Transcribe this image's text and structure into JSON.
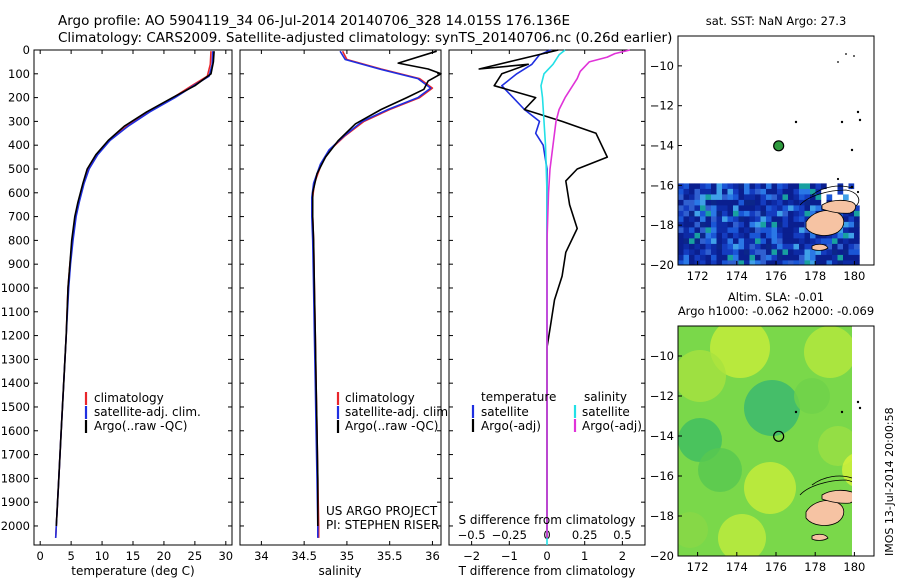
{
  "header": {
    "line1": "Argo profile: AO 5904119_34 06-Jul-2014 20140706_328 14.015S 176.136E",
    "line2": "Climatology: CARS2009. Satellite-adjusted climatology: synTS_20140706.nc (0.26d earlier)"
  },
  "colors": {
    "red": "#e8252b",
    "blue": "#1f2fe0",
    "black": "#000000",
    "cyan": "#22e0e6",
    "magenta": "#e033d8"
  },
  "chart_data": [
    {
      "type": "line",
      "name": "temperature",
      "xlabel": "temperature (deg C)",
      "xlim": [
        -1,
        31
      ],
      "ylim": [
        0,
        2080
      ],
      "y_inverted": true,
      "xticks": [
        0,
        5,
        10,
        15,
        20,
        25,
        30
      ],
      "yticks": [
        0,
        100,
        200,
        300,
        400,
        500,
        600,
        700,
        800,
        900,
        1000,
        1100,
        1200,
        1300,
        1400,
        1500,
        1600,
        1700,
        1800,
        1900,
        2000
      ],
      "legend": {
        "placement": "lower-left",
        "entries": [
          "climatology",
          "satellite-adj. clim.",
          "Argo(..raw -QC)"
        ]
      },
      "series": [
        {
          "name": "climatology",
          "color": "red",
          "points": [
            [
              27.6,
              5
            ],
            [
              27.5,
              60
            ],
            [
              27.0,
              110
            ],
            [
              24.5,
              150
            ],
            [
              21.5,
              200
            ],
            [
              17.5,
              260
            ],
            [
              14.0,
              320
            ],
            [
              11.2,
              380
            ],
            [
              9.2,
              440
            ],
            [
              7.8,
              500
            ],
            [
              7.0,
              560
            ],
            [
              6.2,
              640
            ],
            [
              5.7,
              700
            ],
            [
              5.2,
              800
            ],
            [
              4.8,
              900
            ],
            [
              4.5,
              1000
            ],
            [
              4.2,
              1200
            ],
            [
              3.8,
              1400
            ],
            [
              3.4,
              1600
            ],
            [
              3.0,
              1800
            ],
            [
              2.6,
              2000
            ],
            [
              2.5,
              2050
            ]
          ]
        },
        {
          "name": "satellite-adj. clim.",
          "color": "blue",
          "points": [
            [
              27.9,
              5
            ],
            [
              27.8,
              60
            ],
            [
              27.3,
              110
            ],
            [
              24.8,
              150
            ],
            [
              21.8,
              200
            ],
            [
              17.7,
              260
            ],
            [
              14.2,
              320
            ],
            [
              11.3,
              380
            ],
            [
              9.3,
              440
            ],
            [
              7.9,
              500
            ],
            [
              7.1,
              560
            ],
            [
              6.3,
              640
            ],
            [
              5.8,
              700
            ],
            [
              5.3,
              800
            ],
            [
              4.9,
              900
            ],
            [
              4.6,
              1000
            ],
            [
              4.2,
              1200
            ],
            [
              3.8,
              1400
            ],
            [
              3.4,
              1600
            ],
            [
              3.0,
              1800
            ],
            [
              2.6,
              2000
            ],
            [
              2.5,
              2050
            ]
          ]
        },
        {
          "name": "Argo",
          "color": "black",
          "points": [
            [
              28.1,
              5
            ],
            [
              28.0,
              50
            ],
            [
              27.6,
              100
            ],
            [
              25.0,
              150
            ],
            [
              21.4,
              200
            ],
            [
              17.2,
              260
            ],
            [
              13.6,
              320
            ],
            [
              11.0,
              380
            ],
            [
              9.0,
              440
            ],
            [
              7.6,
              500
            ],
            [
              6.9,
              560
            ],
            [
              6.1,
              640
            ],
            [
              5.6,
              700
            ],
            [
              5.1,
              800
            ],
            [
              4.8,
              900
            ],
            [
              4.5,
              1000
            ],
            [
              4.2,
              1200
            ],
            [
              3.8,
              1400
            ],
            [
              3.4,
              1600
            ],
            [
              3.0,
              1800
            ],
            [
              2.6,
              2000
            ]
          ]
        }
      ]
    },
    {
      "type": "line",
      "name": "salinity",
      "xlabel": "salinity",
      "xlim": [
        33.75,
        36.1
      ],
      "ylim": [
        0,
        2080
      ],
      "y_inverted": true,
      "xticks": [
        34,
        34.5,
        35,
        35.5,
        36
      ],
      "xticklabels": [
        "34",
        "34.5",
        "35",
        "35.5",
        "36"
      ],
      "legend": {
        "placement": "lower-right",
        "entries": [
          "climatology",
          "satellite-adj. clim.",
          "Argo(..raw -QC)"
        ]
      },
      "annotation": [
        "US ARGO PROJECT",
        "PI: STEPHEN RISER"
      ],
      "series": [
        {
          "name": "climatology",
          "color": "red",
          "points": [
            [
              34.95,
              5
            ],
            [
              35.0,
              40
            ],
            [
              35.4,
              80
            ],
            [
              35.85,
              120
            ],
            [
              36.0,
              160
            ],
            [
              35.85,
              200
            ],
            [
              35.5,
              250
            ],
            [
              35.2,
              300
            ],
            [
              34.98,
              360
            ],
            [
              34.8,
              420
            ],
            [
              34.7,
              480
            ],
            [
              34.62,
              560
            ],
            [
              34.6,
              620
            ],
            [
              34.6,
              700
            ],
            [
              34.61,
              800
            ],
            [
              34.62,
              1000
            ],
            [
              34.63,
              1200
            ],
            [
              34.64,
              1400
            ],
            [
              34.65,
              1600
            ],
            [
              34.66,
              1800
            ],
            [
              34.67,
              2000
            ],
            [
              34.67,
              2050
            ]
          ]
        },
        {
          "name": "satellite-adj. clim.",
          "color": "blue",
          "points": [
            [
              34.92,
              5
            ],
            [
              34.98,
              40
            ],
            [
              35.38,
              80
            ],
            [
              35.83,
              120
            ],
            [
              35.98,
              160
            ],
            [
              35.83,
              200
            ],
            [
              35.48,
              250
            ],
            [
              35.18,
              300
            ],
            [
              34.97,
              360
            ],
            [
              34.79,
              420
            ],
            [
              34.69,
              480
            ],
            [
              34.61,
              560
            ],
            [
              34.59,
              620
            ],
            [
              34.59,
              700
            ],
            [
              34.6,
              800
            ],
            [
              34.61,
              1000
            ],
            [
              34.62,
              1200
            ],
            [
              34.63,
              1400
            ],
            [
              34.64,
              1600
            ],
            [
              34.65,
              1800
            ],
            [
              34.66,
              2000
            ],
            [
              34.66,
              2050
            ]
          ]
        },
        {
          "name": "Argo",
          "color": "black",
          "points": [
            [
              36.05,
              5
            ],
            [
              35.6,
              55
            ],
            [
              35.95,
              80
            ],
            [
              36.1,
              100
            ],
            [
              35.95,
              130
            ],
            [
              35.9,
              165
            ],
            [
              35.7,
              200
            ],
            [
              35.4,
              250
            ],
            [
              35.1,
              310
            ],
            [
              34.9,
              380
            ],
            [
              34.75,
              450
            ],
            [
              34.65,
              520
            ],
            [
              34.6,
              600
            ],
            [
              34.6,
              700
            ],
            [
              34.61,
              800
            ],
            [
              34.62,
              1000
            ],
            [
              34.63,
              1200
            ],
            [
              34.64,
              1400
            ],
            [
              34.65,
              1600
            ],
            [
              34.66,
              1800
            ],
            [
              34.66,
              2000
            ]
          ]
        }
      ]
    },
    {
      "type": "line",
      "name": "differences",
      "xlabel": "T difference from climatology",
      "x2label": "S difference from climatology",
      "xlim": [
        -2.6,
        2.6
      ],
      "ylim": [
        0,
        2080
      ],
      "y_inverted": true,
      "xticks": [
        -2,
        -1,
        0,
        1,
        2
      ],
      "x2ticks": [
        -0.5,
        -0.25,
        0,
        0.25,
        0.5
      ],
      "x2_scale_factor": 4,
      "legend": {
        "placement": "lower-center",
        "headers": [
          "temperature",
          "salinity"
        ],
        "entries": [
          "satellite",
          "Argo(-adj)",
          "satellite",
          "Argo(-adj)"
        ]
      },
      "series": [
        {
          "name": "temperature satellite",
          "color": "blue",
          "points": [
            [
              0.1,
              0
            ],
            [
              -0.2,
              20
            ],
            [
              -0.4,
              60
            ],
            [
              -0.8,
              100
            ],
            [
              -1.2,
              150
            ],
            [
              -0.9,
              200
            ],
            [
              -0.6,
              250
            ],
            [
              -0.2,
              300
            ],
            [
              -0.3,
              350
            ],
            [
              -0.1,
              400
            ],
            [
              0.0,
              500
            ],
            [
              0.0,
              600
            ],
            [
              0.0,
              800
            ],
            [
              0.0,
              1000
            ],
            [
              0.0,
              1200
            ],
            [
              0.0,
              1600
            ],
            [
              0.0,
              2050
            ]
          ]
        },
        {
          "name": "temperature Argo(-adj)",
          "color": "black",
          "points": [
            [
              0.3,
              0
            ],
            [
              -1.8,
              80
            ],
            [
              -0.5,
              60
            ],
            [
              -1.2,
              100
            ],
            [
              -1.4,
              150
            ],
            [
              -0.3,
              200
            ],
            [
              -0.6,
              250
            ],
            [
              0.4,
              300
            ],
            [
              1.3,
              350
            ],
            [
              1.6,
              450
            ],
            [
              0.8,
              500
            ],
            [
              0.5,
              550
            ],
            [
              0.6,
              650
            ],
            [
              0.8,
              750
            ],
            [
              0.5,
              850
            ],
            [
              0.4,
              950
            ],
            [
              0.3,
              1000
            ],
            [
              0.2,
              1050
            ],
            [
              0.1,
              1150
            ],
            [
              0.0,
              1250
            ],
            [
              0.0,
              1600
            ],
            [
              0.0,
              2050
            ]
          ]
        },
        {
          "name": "salinity satellite",
          "color": "cyan",
          "points": [
            [
              0.12,
              0
            ],
            [
              0.08,
              20
            ],
            [
              0.04,
              60
            ],
            [
              -0.02,
              100
            ],
            [
              -0.04,
              150
            ],
            [
              -0.03,
              200
            ],
            [
              -0.02,
              300
            ],
            [
              -0.01,
              400
            ],
            [
              0.0,
              600
            ],
            [
              0.0,
              1000
            ],
            [
              0.0,
              1600
            ],
            [
              0.0,
              2080
            ]
          ]
        },
        {
          "name": "salinity Argo(-adj)",
          "color": "magenta",
          "points": [
            [
              0.55,
              0
            ],
            [
              0.45,
              15
            ],
            [
              0.4,
              30
            ],
            [
              0.28,
              50
            ],
            [
              0.22,
              90
            ],
            [
              0.2,
              120
            ],
            [
              0.12,
              200
            ],
            [
              0.08,
              250
            ],
            [
              0.06,
              300
            ],
            [
              0.04,
              400
            ],
            [
              0.02,
              500
            ],
            [
              0.01,
              600
            ],
            [
              0.0,
              800
            ],
            [
              0.0,
              1000
            ],
            [
              0.0,
              2050
            ]
          ]
        }
      ]
    },
    {
      "type": "heatmap",
      "name": "sst-map",
      "title": "sat. SST: NaN Argo: 27.3",
      "xlim": [
        171,
        181
      ],
      "ylim": [
        -20,
        -8.5
      ],
      "xticks": [
        172,
        174,
        176,
        178,
        180
      ],
      "yticks": [
        -10,
        -12,
        -14,
        -16,
        -18,
        -20
      ],
      "argo_position": [
        176.136,
        -14.015
      ],
      "coverage_region": [
        [
          171,
          -16
        ],
        [
          180,
          -16
        ],
        [
          180,
          -20
        ],
        [
          171,
          -20
        ]
      ]
    },
    {
      "type": "heatmap",
      "name": "sla-map",
      "title": "Altim. SLA: -0.01",
      "subtitle": "Argo h1000: -0.062 h2000: -0.069",
      "xlim": [
        171,
        181
      ],
      "ylim": [
        -20,
        -8.5
      ],
      "xticks": [
        172,
        174,
        176,
        178,
        180
      ],
      "yticks": [
        -10,
        -12,
        -14,
        -16,
        -18,
        -20
      ],
      "argo_position": [
        176.136,
        -14.015
      ]
    }
  ],
  "footer": {
    "timestamp": "IMOS 13-Jul-2014 20:00:58"
  }
}
